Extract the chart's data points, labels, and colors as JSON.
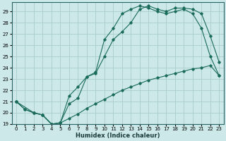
{
  "xlabel": "Humidex (Indice chaleur)",
  "bg_color": "#cce8e8",
  "grid_color": "#aacccc",
  "line_color": "#1a6b5a",
  "xlim": [
    -0.5,
    23.5
  ],
  "ylim": [
    19,
    29.8
  ],
  "xticks": [
    0,
    1,
    2,
    3,
    4,
    5,
    6,
    7,
    8,
    9,
    10,
    11,
    12,
    13,
    14,
    15,
    16,
    17,
    18,
    19,
    20,
    21,
    22,
    23
  ],
  "yticks": [
    19,
    20,
    21,
    22,
    23,
    24,
    25,
    26,
    27,
    28,
    29
  ],
  "line1_x": [
    0,
    1,
    2,
    3,
    4,
    5,
    6,
    7,
    8,
    9,
    10,
    11,
    12,
    13,
    14,
    15,
    16,
    17,
    18,
    19,
    20,
    21,
    22,
    23
  ],
  "line1_y": [
    21.0,
    20.3,
    20.0,
    19.8,
    19.0,
    19.1,
    19.5,
    19.9,
    20.4,
    20.8,
    21.2,
    21.6,
    22.0,
    22.3,
    22.6,
    22.9,
    23.1,
    23.3,
    23.5,
    23.7,
    23.9,
    24.0,
    24.2,
    23.3
  ],
  "line2_x": [
    0,
    1,
    2,
    3,
    4,
    5,
    6,
    7,
    8,
    9,
    10,
    11,
    12,
    13,
    14,
    15,
    16,
    17,
    18,
    19,
    20,
    21,
    22,
    23
  ],
  "line2_y": [
    21.0,
    20.3,
    20.0,
    19.8,
    19.0,
    19.1,
    20.8,
    21.3,
    23.2,
    23.6,
    26.5,
    27.5,
    28.8,
    29.2,
    29.5,
    29.3,
    29.0,
    28.8,
    29.0,
    29.2,
    28.8,
    27.5,
    25.0,
    23.3
  ],
  "line3_x": [
    0,
    2,
    3,
    4,
    5,
    6,
    7,
    8,
    9,
    10,
    11,
    12,
    13,
    14,
    15,
    16,
    17,
    18,
    19,
    20,
    21,
    22,
    23
  ],
  "line3_y": [
    21.0,
    20.0,
    19.8,
    19.0,
    19.1,
    21.5,
    22.3,
    23.2,
    23.5,
    25.0,
    26.5,
    27.2,
    28.0,
    29.2,
    29.5,
    29.2,
    29.0,
    29.3,
    29.3,
    29.2,
    28.8,
    26.8,
    24.5
  ]
}
